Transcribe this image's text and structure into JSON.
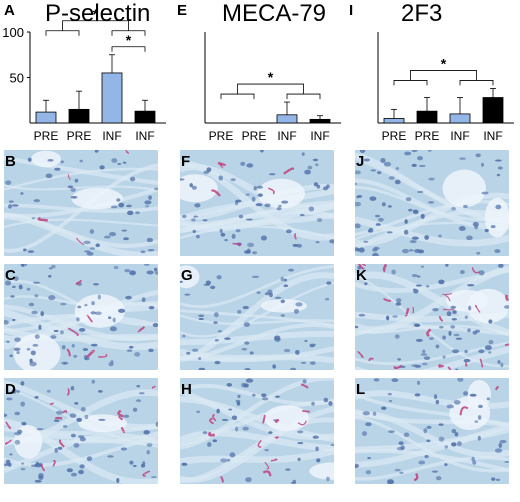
{
  "figure": {
    "chart_panels": [
      {
        "letter": "A",
        "title": "P-selectin"
      },
      {
        "letter": "E",
        "title": "MECA-79"
      },
      {
        "letter": "I",
        "title": "2F3"
      }
    ],
    "image_panels": [
      {
        "letter": "B",
        "staining": "sparse"
      },
      {
        "letter": "C",
        "staining": "light"
      },
      {
        "letter": "D",
        "staining": "vessels"
      },
      {
        "letter": "F",
        "staining": "light"
      },
      {
        "letter": "G",
        "staining": "none"
      },
      {
        "letter": "H",
        "staining": "vessels"
      },
      {
        "letter": "J",
        "staining": "none"
      },
      {
        "letter": "K",
        "staining": "strong"
      },
      {
        "letter": "L",
        "staining": "sparse"
      }
    ]
  },
  "colors": {
    "blue_bar": "#94b6e6",
    "black_bar": "#000000",
    "tissue_bg": "#b9d4e6",
    "tissue_nuclei": "#4f6fa8",
    "stain": "#c0407e"
  },
  "chart_data": [
    {
      "type": "bar",
      "title": "P-selectin",
      "categories": [
        "PRE",
        "PRE",
        "INF",
        "INF"
      ],
      "values": [
        12,
        15,
        55,
        13
      ],
      "errors": [
        13,
        20,
        20,
        12
      ],
      "bar_colors": [
        "#94b6e6",
        "#000000",
        "#94b6e6",
        "#000000"
      ],
      "ylim": [
        0,
        100
      ],
      "yticks": [
        50,
        100
      ],
      "significance": [
        "*",
        "*"
      ],
      "grid": false
    },
    {
      "type": "bar",
      "title": "MECA-79",
      "categories": [
        "PRE",
        "PRE",
        "INF",
        "INF"
      ],
      "values": [
        0,
        0,
        9,
        4
      ],
      "errors": [
        0,
        0,
        14,
        4
      ],
      "bar_colors": [
        "#94b6e6",
        "#000000",
        "#94b6e6",
        "#000000"
      ],
      "ylim": [
        0,
        100
      ],
      "yticks": [],
      "significance": [
        "*"
      ],
      "grid": false
    },
    {
      "type": "bar",
      "title": "2F3",
      "categories": [
        "PRE",
        "PRE",
        "INF",
        "INF"
      ],
      "values": [
        5,
        13,
        10,
        28
      ],
      "errors": [
        10,
        15,
        18,
        10
      ],
      "bar_colors": [
        "#94b6e6",
        "#000000",
        "#94b6e6",
        "#000000"
      ],
      "ylim": [
        0,
        100
      ],
      "yticks": [],
      "significance": [
        "*"
      ],
      "grid": false
    }
  ]
}
